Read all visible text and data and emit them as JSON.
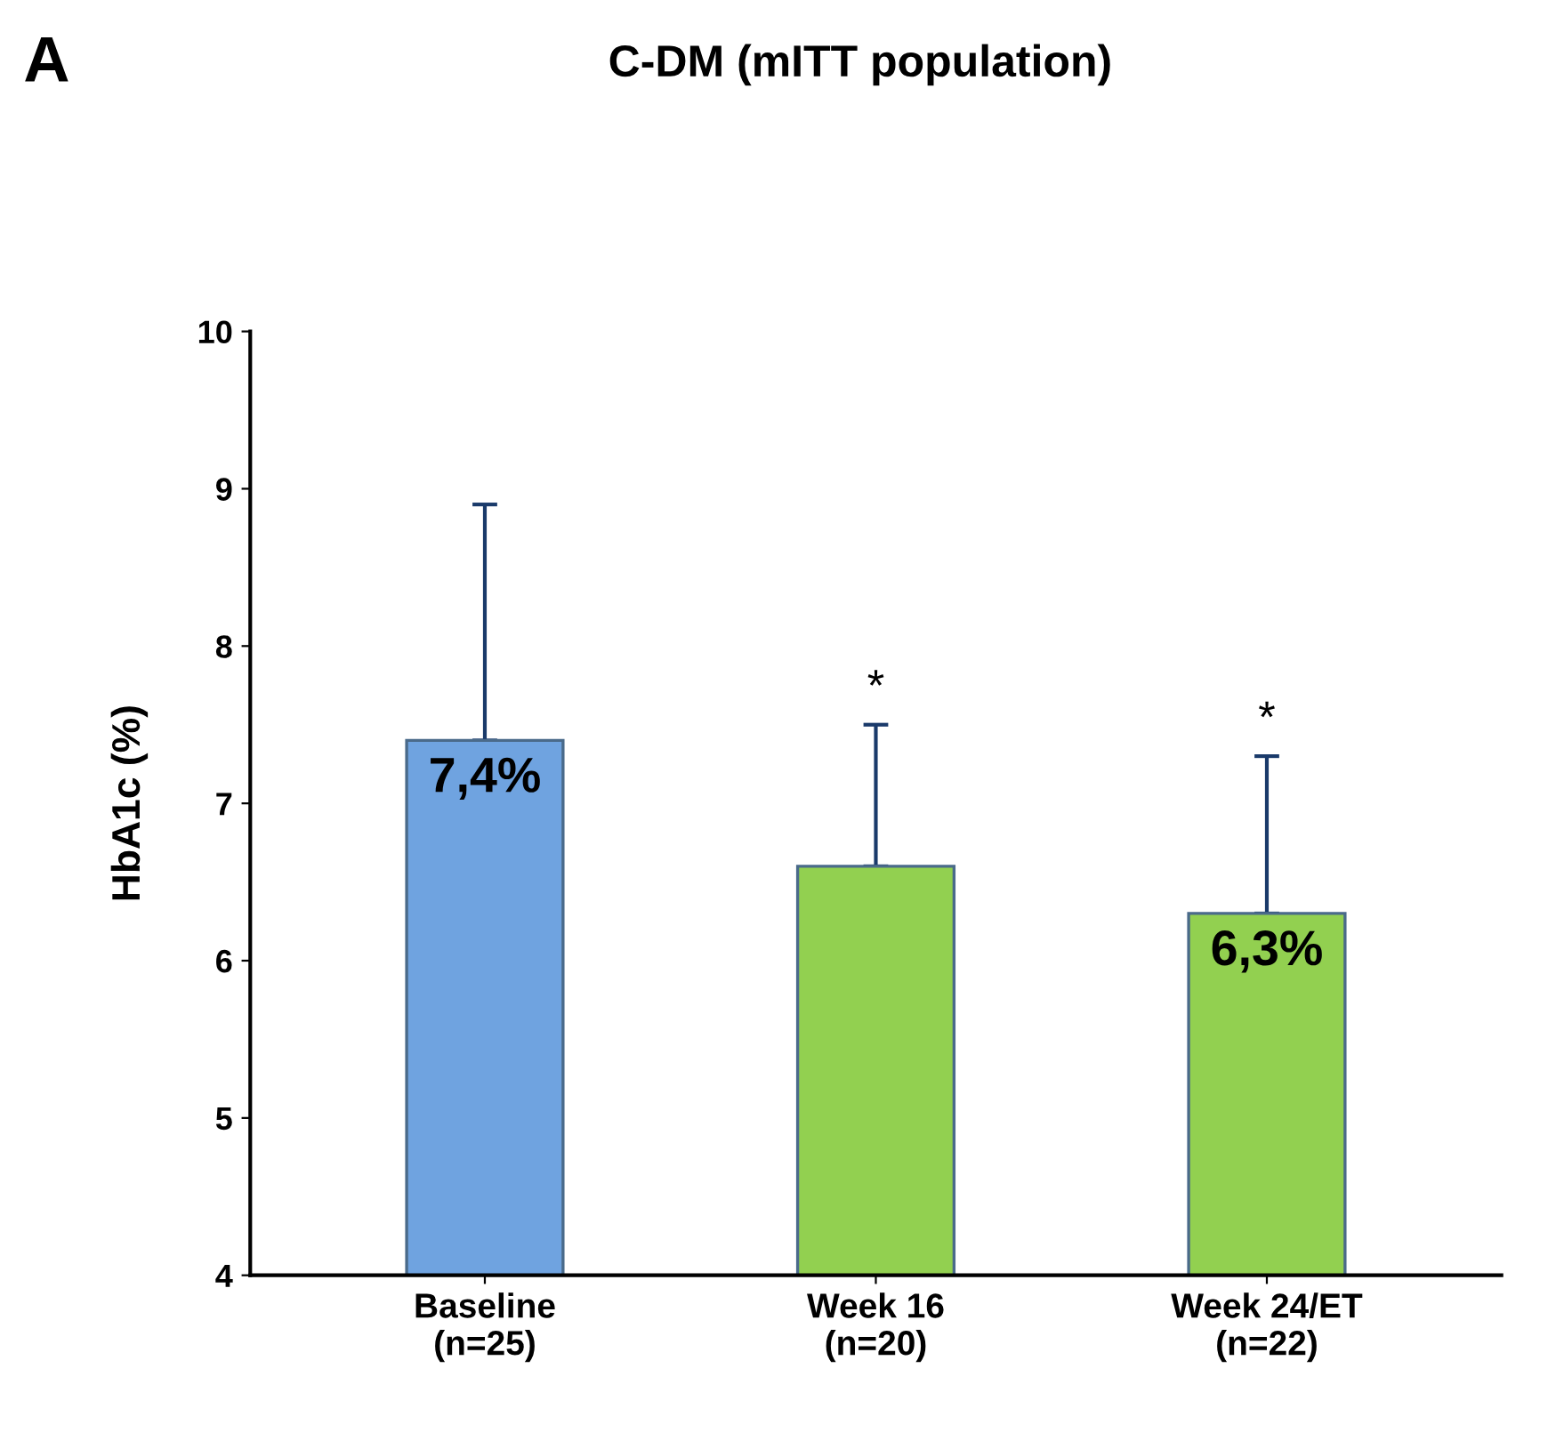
{
  "chart_data": {
    "type": "bar",
    "title": "C-DM (mITT population)",
    "ylabel": "HbA1c (%)",
    "categories": [
      "Baseline\n(n=25)",
      "Week 16\n(n=20)",
      "Week 24/ET\n(n=22)"
    ],
    "values": [
      7.4,
      6.6,
      6.3
    ],
    "colors": [
      "#6fa3e0",
      "#92d050",
      "#92d050"
    ],
    "errors": [
      [
        7.4,
        8.9
      ],
      [
        6.6,
        7.5
      ],
      [
        6.3,
        7.3
      ]
    ],
    "value_labels": [
      "7,4%",
      null,
      "6,3%"
    ],
    "ylim": [
      4,
      10
    ],
    "yticks": [
      4,
      5,
      6,
      7,
      8,
      9,
      10
    ],
    "grid": false,
    "annotations": [
      "A",
      "*",
      "*"
    ]
  }
}
